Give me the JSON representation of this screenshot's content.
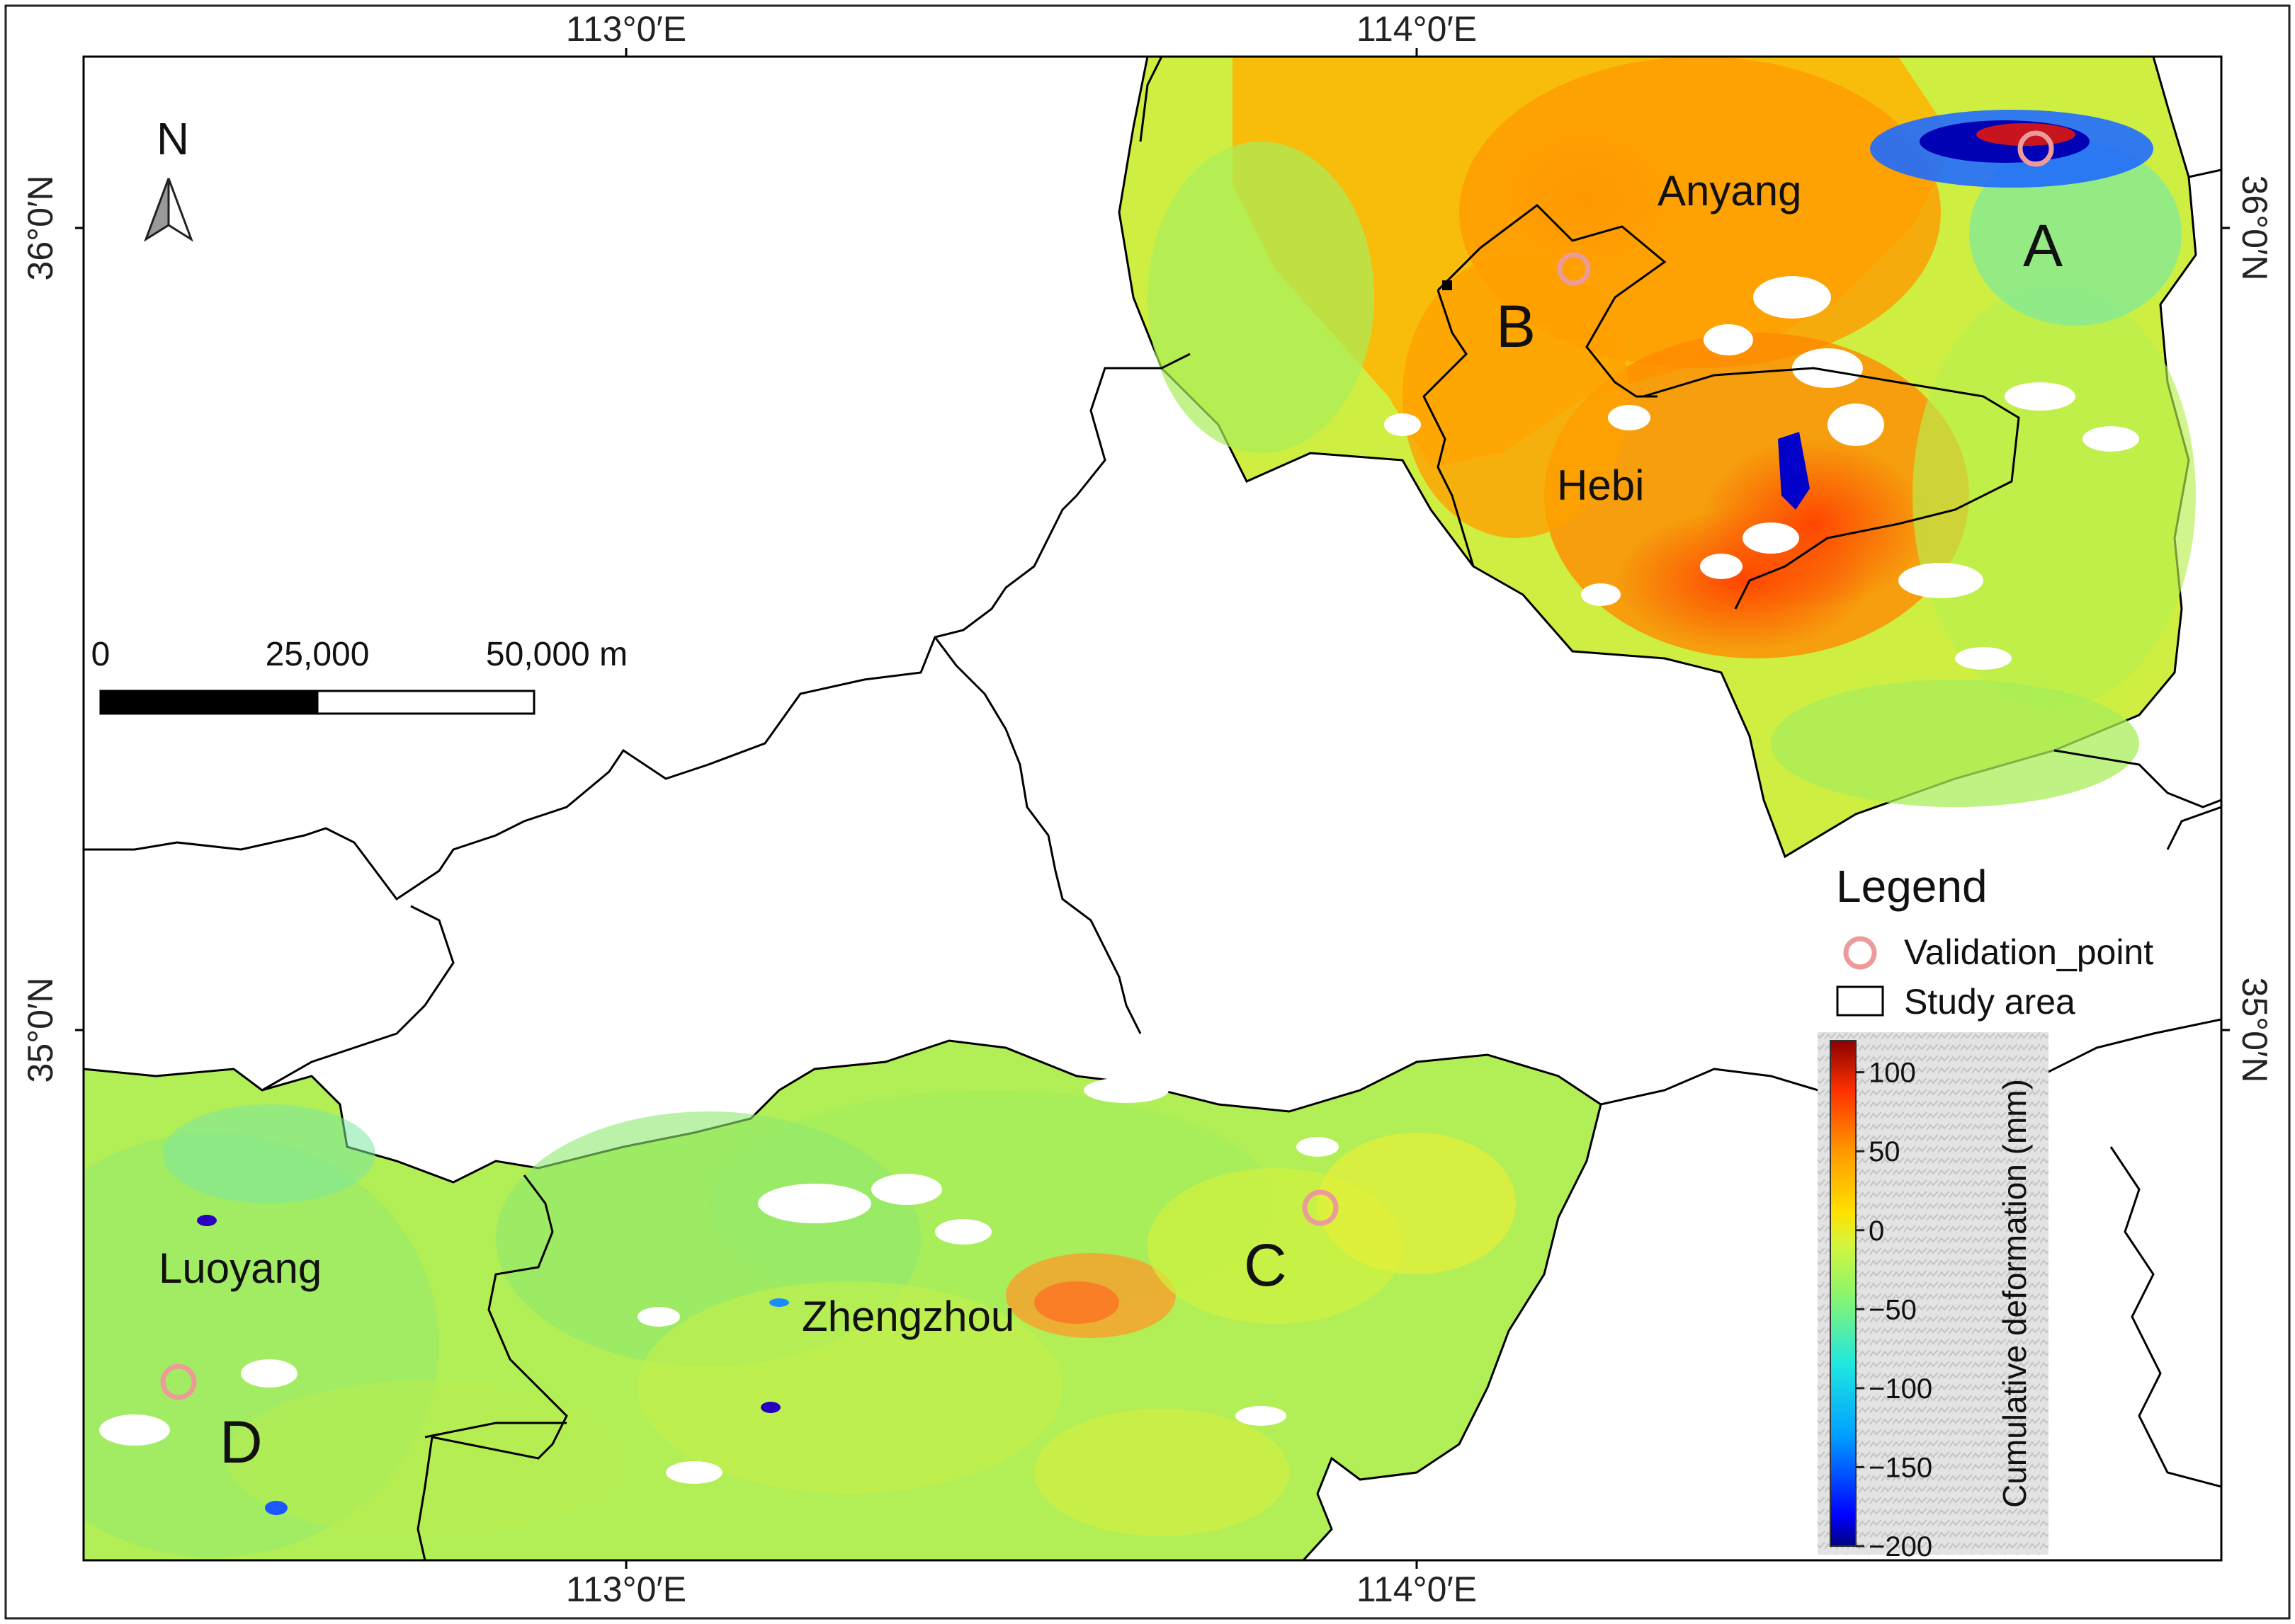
{
  "map": {
    "coord_labels": {
      "lon_top": [
        "113°0′E",
        "114°0′E"
      ],
      "lon_bottom": [
        "113°0′E",
        "114°0′E"
      ],
      "lat_left": [
        "36°0′N",
        "35°0′N"
      ],
      "lat_right": [
        "36°0′N",
        "35°0′N"
      ]
    },
    "north_arrow": {
      "label": "N"
    },
    "scale_bar": {
      "ticks": [
        "0",
        "25,000",
        "50,000 m"
      ]
    },
    "cities": [
      "Anyang",
      "Hebi",
      "Luoyang",
      "Zhengzhou"
    ],
    "site_labels": [
      "A",
      "B",
      "C",
      "D"
    ]
  },
  "legend": {
    "title": "Legend",
    "items": [
      {
        "label": "Validation_point",
        "symbol": "pink-circle",
        "color": "#ec9a9a"
      },
      {
        "label": "Study area",
        "symbol": "black-rectangle",
        "color": "#000000"
      }
    ]
  },
  "colorbar": {
    "title": "Cumulative deformation (mm)",
    "ticks": [
      "100",
      "50",
      "0",
      "−50",
      "−100",
      "−150",
      "−200"
    ],
    "tick_values": [
      100,
      50,
      0,
      -50,
      -100,
      -150,
      -200
    ],
    "range": [
      -200,
      120
    ],
    "colors": [
      "#00007f",
      "#0000ff",
      "#00a0ff",
      "#1fe7e0",
      "#8ef56a",
      "#d6f53a",
      "#ffe100",
      "#ff9a00",
      "#ff3200",
      "#8b0000"
    ]
  }
}
